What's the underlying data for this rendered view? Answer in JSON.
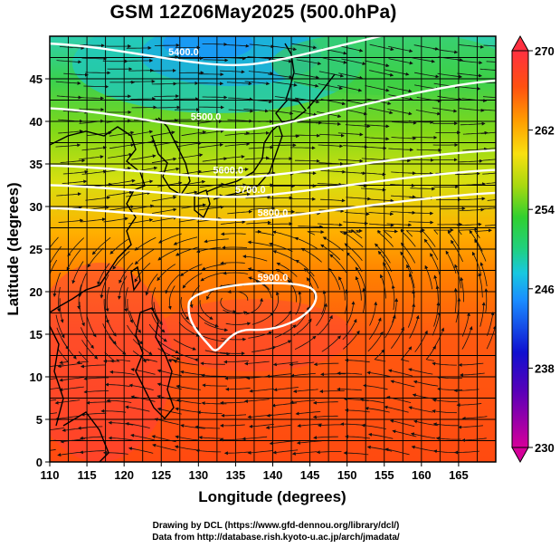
{
  "title": "GSM 12Z06May2025 (500.0hPa)",
  "xaxis": {
    "label": "Longitude (degrees)",
    "ticks": [
      "110",
      "115",
      "120",
      "125",
      "130",
      "135",
      "140",
      "145",
      "150",
      "155",
      "160",
      "165"
    ],
    "range": [
      110,
      170
    ]
  },
  "yaxis": {
    "label": "Latitude  (degrees)",
    "ticks": [
      "0",
      "5",
      "10",
      "15",
      "20",
      "25",
      "30",
      "35",
      "40",
      "45"
    ],
    "range": [
      0,
      50
    ]
  },
  "colorbar": {
    "ticks": [
      "270",
      "262",
      "254",
      "246",
      "238",
      "230"
    ],
    "range": [
      230,
      270
    ]
  },
  "contours": [
    {
      "label": "5400.0",
      "lat": 48.2
    },
    {
      "label": "5500.0",
      "lat": 40.6
    },
    {
      "label": "5600.0",
      "lat": 34.3
    },
    {
      "label": "5700.0",
      "lat": 32.0
    },
    {
      "label": "5800.0",
      "lat": 29.3
    },
    {
      "label": "5900.0",
      "lat": 21.8
    }
  ],
  "credits": {
    "line1": "Drawing by DCL (https://www.gfd-dennou.org/library/dcl/)",
    "line2": "Data from http://database.rish.kyoto-u.ac.jp/arch/jmadata/"
  },
  "colors": {
    "stops": [
      "#d40093",
      "#6a00b8",
      "#1a1ad0",
      "#1e90ff",
      "#18d0d8",
      "#20d070",
      "#50d020",
      "#a8d810",
      "#f0e010",
      "#ff9a00",
      "#ff4a10",
      "#ff3030"
    ],
    "contour": "#ffffff",
    "coast": "#000000",
    "stream": "#111111"
  },
  "chart_data": {
    "type": "heatmap",
    "title": "GSM 12Z06May2025 (500.0hPa)",
    "xlabel": "Longitude (degrees)",
    "ylabel": "Latitude  (degrees)",
    "xlim": [
      110,
      170
    ],
    "ylim": [
      0,
      50
    ],
    "colorbar_range": [
      230,
      270
    ],
    "colorbar_ticks": [
      230,
      238,
      246,
      254,
      262,
      270
    ],
    "contour_interval_m": 100,
    "contour_levels_m": [
      5400,
      5500,
      5600,
      5700,
      5800,
      5900
    ],
    "shading": "temperature (K)",
    "overlay": "wind streamlines"
  }
}
